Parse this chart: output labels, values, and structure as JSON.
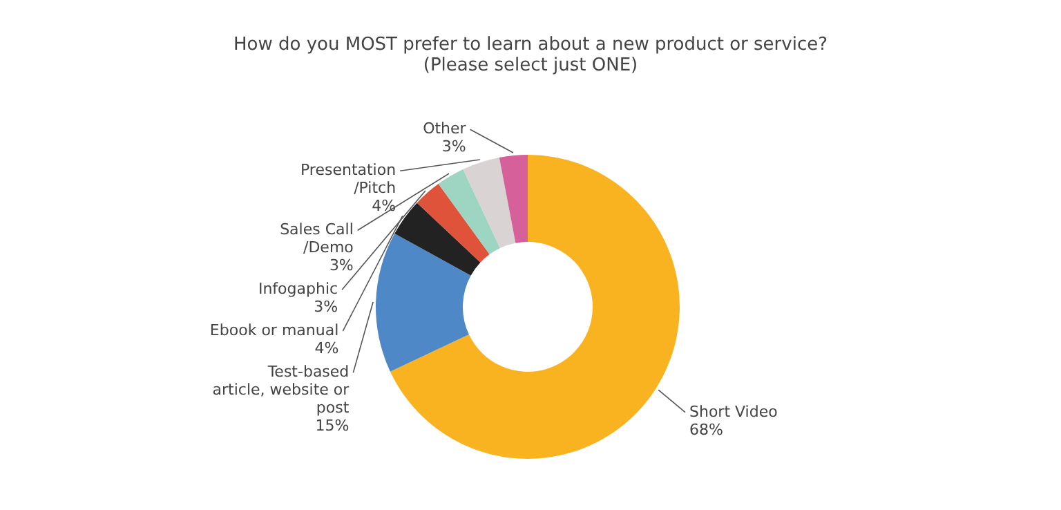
{
  "chart_data": {
    "type": "donut",
    "title": "How do you MOST prefer to learn about a new product or service?\n(Please select just ONE)",
    "categories": [
      "Short Video",
      "Test-based\narticle, website or\npost",
      "Ebook or manual",
      "Infogaphic",
      "Sales Call\n/Demo",
      "Presentation\n/Pitch",
      "Other"
    ],
    "values": [
      68,
      15,
      4,
      3,
      3,
      4,
      3
    ],
    "value_labels": [
      "68%",
      "15%",
      "4%",
      "3%",
      "3%",
      "4%",
      "3%"
    ],
    "colors": [
      "#f9b320",
      "#4f88c6",
      "#222222",
      "#e0533b",
      "#9dd5c2",
      "#d9d3d3",
      "#d6609a"
    ],
    "legend": false
  }
}
